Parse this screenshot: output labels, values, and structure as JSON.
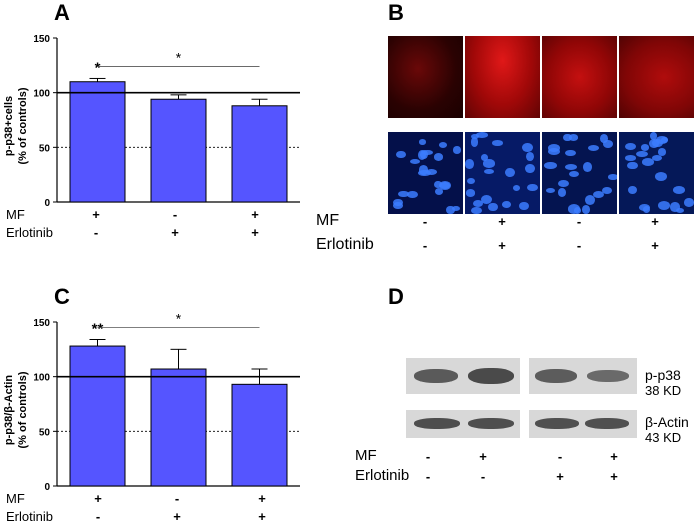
{
  "panels": {
    "A": "A",
    "B": "B",
    "C": "C",
    "D": "D"
  },
  "chart_data": [
    {
      "type": "bar",
      "panel": "A",
      "ylabel": "p-p38+cells\n(% of controls)",
      "ylabel_line1": "p-p38+cells",
      "ylabel_line2": "(% of controls)",
      "ylim": [
        0,
        150
      ],
      "yticks": [
        "0",
        "50",
        "100",
        "150"
      ],
      "values": [
        110,
        94,
        88
      ],
      "errors": [
        3,
        4,
        6
      ],
      "reference_solid": 100,
      "reference_dashed": 50,
      "annotations": [
        {
          "text": "*",
          "over": 0
        },
        {
          "text": "*",
          "bracket": [
            0,
            2
          ]
        }
      ],
      "bar_color": "#5555ff"
    },
    {
      "type": "bar",
      "panel": "C",
      "ylabel": "p-p38/β-Actin\n(% of controls)",
      "ylabel_line1": "p-p38/β-Actin",
      "ylabel_line2": "(% of controls)",
      "ylim": [
        0,
        150
      ],
      "yticks": [
        "0",
        "50",
        "100",
        "150"
      ],
      "values": [
        128,
        107,
        93
      ],
      "errors": [
        6,
        18,
        14
      ],
      "reference_solid": 100,
      "reference_dashed": 50,
      "annotations": [
        {
          "text": "**",
          "over": 0
        },
        {
          "text": "*",
          "bracket": [
            0,
            2
          ]
        }
      ],
      "bar_color": "#5555ff"
    }
  ],
  "conditions": {
    "mf_label": "MF",
    "erlotinib_label": "Erlotinib",
    "A": {
      "mf": [
        "+",
        "-",
        "+"
      ],
      "erlotinib": [
        "-",
        "+",
        "+"
      ]
    },
    "B": {
      "mf": [
        "-",
        "+",
        "-",
        "+"
      ],
      "erlotinib": [
        "-",
        "+",
        "-",
        "+"
      ]
    },
    "C": {
      "mf": [
        "+",
        "-",
        "+"
      ],
      "erlotinib": [
        "-",
        "+",
        "+"
      ]
    },
    "D": {
      "mf": [
        "-",
        "+",
        "-",
        "+"
      ],
      "erlotinib": [
        "-",
        "-",
        "+",
        "+"
      ]
    }
  },
  "blot": {
    "band1_name": "p-p38",
    "band1_size": "38 KD",
    "band2_name": "β-Actin",
    "band2_size": "43 KD"
  },
  "colors": {
    "bars": "#5555ff",
    "red_stain": "#c01010",
    "blue_stain": "#1a3fe0"
  }
}
